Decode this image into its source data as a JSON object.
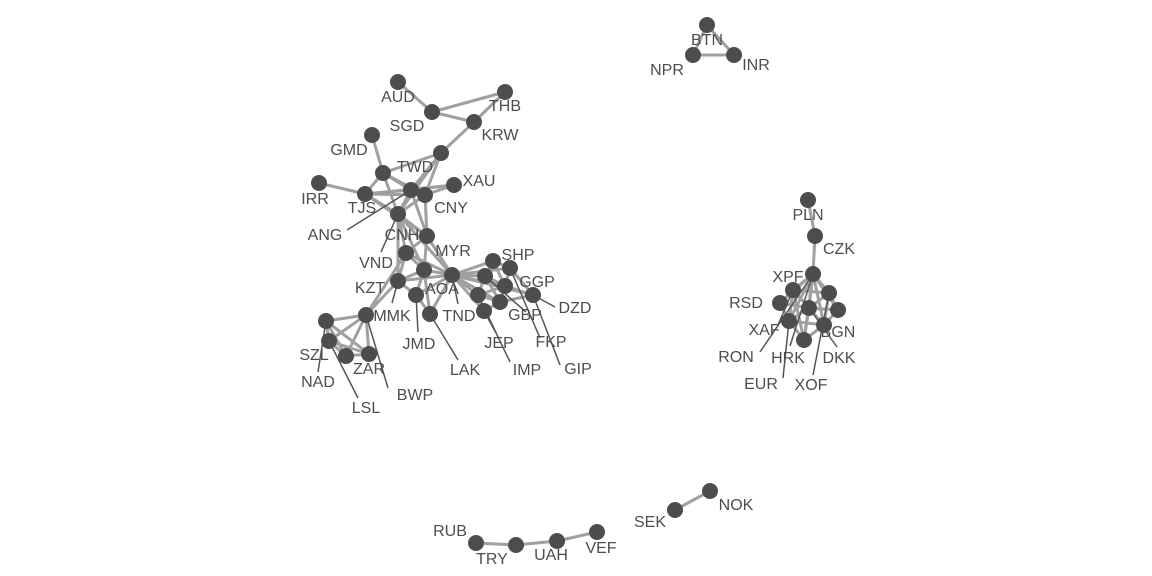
{
  "colors": {
    "node": "#4d4d4d",
    "edge": "#a0a0a0",
    "label": "#4d4d4d",
    "background": "#ffffff"
  },
  "labels": {
    "AUD": "AUD",
    "THB": "THB",
    "SGD": "SGD",
    "KRW": "KRW",
    "GMD": "GMD",
    "TWD": "TWD",
    "XAU": "XAU",
    "IRR": "IRR",
    "TJS": "TJS",
    "CNY": "CNY",
    "ANG": "ANG",
    "CNH": "CNH",
    "MYR": "MYR",
    "VND": "VND",
    "SHP": "SHP",
    "GGP": "GGP",
    "KZT": "KZT",
    "AOA": "AOA",
    "DZD": "DZD",
    "MMK": "MMK",
    "TND": "TND",
    "GBP": "GBP",
    "FKP": "FKP",
    "JMD": "JMD",
    "JEP": "JEP",
    "SZL": "SZL",
    "ZAR": "ZAR",
    "LAK": "LAK",
    "IMP": "IMP",
    "GIP": "GIP",
    "NAD": "NAD",
    "BWP": "BWP",
    "LSL": "LSL",
    "BTN": "BTN",
    "NPR": "NPR",
    "INR": "INR",
    "PLN": "PLN",
    "CZK": "CZK",
    "XPF": "XPF",
    "RSD": "RSD",
    "XAF": "XAF",
    "BGN": "BGN",
    "RON": "RON",
    "HRK": "HRK",
    "DKK": "DKK",
    "EUR": "EUR",
    "XOF": "XOF",
    "SEK": "SEK",
    "NOK": "NOK",
    "RUB": "RUB",
    "TRY": "TRY",
    "UAH": "UAH",
    "VEF": "VEF"
  }
}
